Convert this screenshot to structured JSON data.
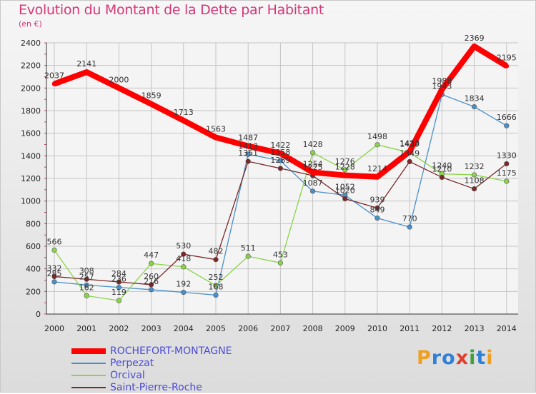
{
  "title": "Evolution du Montant de la Dette par Habitant",
  "unit": "(en €)",
  "logo": "Proxiti",
  "chart_data": {
    "type": "line",
    "x": [
      "2000",
      "2001",
      "2002",
      "2003",
      "2004",
      "2005",
      "2006",
      "2007",
      "2008",
      "2009",
      "2010",
      "2011",
      "2012",
      "2013",
      "2014"
    ],
    "ylim": [
      0,
      2400
    ],
    "yticks": [
      0,
      200,
      400,
      600,
      800,
      1000,
      1200,
      1400,
      1600,
      1800,
      2000,
      2200,
      2400
    ],
    "grid": true,
    "legend_position": "bottom-left",
    "series": [
      {
        "name": "ROCHEFORT-MONTAGNE",
        "color": "#ff0000",
        "values": [
          2037,
          2141,
          2000,
          1859,
          1713,
          1563,
          1487,
          1422,
          1254,
          1228,
          1214,
          1438,
          1988,
          2369,
          2195
        ],
        "labels": [
          "2037",
          "2141",
          "2000",
          "1859",
          "1713",
          "1563",
          "1487",
          "1422",
          "1254",
          "1228",
          "1214",
          "1438",
          "1988",
          "2369",
          "2195"
        ]
      },
      {
        "name": "Perpezat",
        "color": "#4a90c8",
        "values": [
          285,
          257,
          236,
          216,
          192,
          168,
          1413,
          1358,
          1087,
          1052,
          849,
          770,
          1943,
          1834,
          1666
        ],
        "labels": [
          "285",
          "257",
          "236",
          "216",
          "192",
          "168",
          "1413",
          "1358",
          "1087",
          "1052",
          "849",
          "770",
          "1943",
          "1834",
          "1666"
        ]
      },
      {
        "name": "Orcival",
        "color": "#8ad448",
        "values": [
          566,
          162,
          119,
          447,
          418,
          252,
          511,
          453,
          1428,
          1276,
          1498,
          1429,
          1240,
          1232,
          1175
        ],
        "labels": [
          "566",
          "162",
          "119",
          "447",
          "418",
          "252",
          "511",
          "453",
          "1428",
          "1276",
          "1498",
          "1429",
          "1240",
          "1232",
          "1175"
        ]
      },
      {
        "name": "Saint-Pierre-Roche",
        "color": "#7a2828",
        "values": [
          332,
          308,
          284,
          260,
          530,
          482,
          1351,
          1289,
          1225,
          1020,
          939,
          1349,
          1210,
          1108,
          1330
        ],
        "labels": [
          "332",
          "308",
          "284",
          "260",
          "530",
          "482",
          "1351",
          "1289",
          "1225",
          "1020",
          "939",
          "1349",
          "1210",
          "1108",
          "1330"
        ]
      }
    ]
  }
}
